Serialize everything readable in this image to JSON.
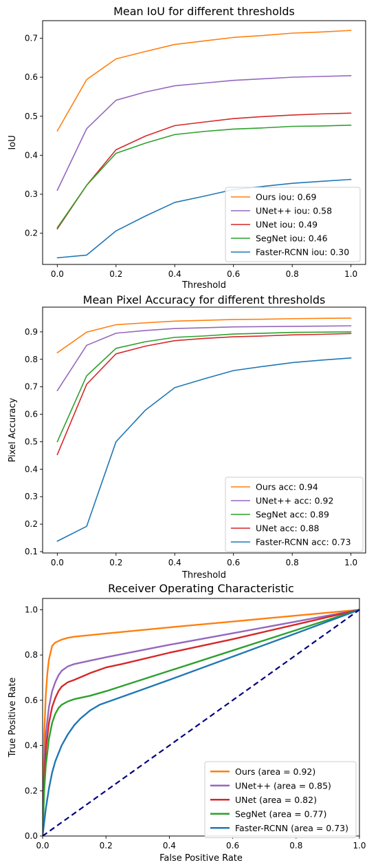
{
  "colors": {
    "ours": "#ff7f0e",
    "unetpp": "#9467bd",
    "unet": "#d62728",
    "segnet": "#2ca02c",
    "fastercnn": "#1f77b4",
    "diagonal": "#000080"
  },
  "chart_data": [
    {
      "type": "line",
      "title": "Mean IoU for different thresholds",
      "xlabel": "Threshold",
      "ylabel": "IoU",
      "xlim": [
        -0.05,
        1.05
      ],
      "ylim": [
        0.12,
        0.745
      ],
      "xticks": [
        0.0,
        0.2,
        0.4,
        0.6,
        0.8,
        1.0
      ],
      "yticks": [
        0.2,
        0.3,
        0.4,
        0.5,
        0.6,
        0.7
      ],
      "grid": false,
      "legend_position": "lower-right",
      "x": [
        0.0,
        0.1,
        0.2,
        0.3,
        0.4,
        0.5,
        0.6,
        0.7,
        0.8,
        0.9,
        1.0
      ],
      "series": [
        {
          "name": "Ours iou: 0.69",
          "color_key": "ours",
          "values": [
            0.462,
            0.594,
            0.647,
            0.666,
            0.684,
            0.693,
            0.702,
            0.707,
            0.713,
            0.716,
            0.72
          ]
        },
        {
          "name": "UNet++ iou: 0.58",
          "color_key": "unetpp",
          "values": [
            0.31,
            0.468,
            0.541,
            0.562,
            0.578,
            0.585,
            0.592,
            0.596,
            0.6,
            0.602,
            0.604
          ]
        },
        {
          "name": "UNet iou: 0.49",
          "color_key": "unet",
          "values": [
            0.211,
            0.323,
            0.414,
            0.449,
            0.476,
            0.485,
            0.494,
            0.499,
            0.503,
            0.506,
            0.508
          ]
        },
        {
          "name": "SegNet iou: 0.46",
          "color_key": "segnet",
          "values": [
            0.214,
            0.323,
            0.405,
            0.431,
            0.453,
            0.461,
            0.467,
            0.47,
            0.474,
            0.475,
            0.477
          ]
        },
        {
          "name": "Faster-RCNN iou: 0.30",
          "color_key": "fastercnn",
          "values": [
            0.137,
            0.144,
            0.206,
            0.244,
            0.279,
            0.295,
            0.312,
            0.32,
            0.328,
            0.333,
            0.338
          ]
        }
      ]
    },
    {
      "type": "line",
      "title": "Mean Pixel Accuracy for different thresholds",
      "xlabel": "Threshold",
      "ylabel": "Pixel Accuracy",
      "xlim": [
        -0.05,
        1.05
      ],
      "ylim": [
        0.095,
        0.99
      ],
      "xticks": [
        0.0,
        0.2,
        0.4,
        0.6,
        0.8,
        1.0
      ],
      "yticks": [
        0.1,
        0.2,
        0.3,
        0.4,
        0.5,
        0.6,
        0.7,
        0.8,
        0.9
      ],
      "grid": false,
      "legend_position": "lower-right",
      "x": [
        0.0,
        0.1,
        0.2,
        0.3,
        0.4,
        0.5,
        0.6,
        0.7,
        0.8,
        0.9,
        1.0
      ],
      "series": [
        {
          "name": "Ours acc: 0.94",
          "color_key": "ours",
          "values": [
            0.824,
            0.899,
            0.926,
            0.933,
            0.939,
            0.942,
            0.945,
            0.946,
            0.948,
            0.949,
            0.95
          ]
        },
        {
          "name": "UNet++ acc: 0.92",
          "color_key": "unetpp",
          "values": [
            0.686,
            0.851,
            0.895,
            0.905,
            0.912,
            0.915,
            0.918,
            0.919,
            0.92,
            0.921,
            0.922
          ]
        },
        {
          "name": "SegNet acc: 0.89",
          "color_key": "segnet",
          "values": [
            0.5,
            0.74,
            0.84,
            0.864,
            0.88,
            0.885,
            0.892,
            0.895,
            0.898,
            0.899,
            0.9
          ]
        },
        {
          "name": "UNet acc: 0.88",
          "color_key": "unet",
          "values": [
            0.453,
            0.709,
            0.82,
            0.848,
            0.868,
            0.876,
            0.882,
            0.885,
            0.889,
            0.891,
            0.894
          ]
        },
        {
          "name": "Faster-RCNN acc: 0.73",
          "color_key": "fastercnn",
          "values": [
            0.138,
            0.192,
            0.5,
            0.615,
            0.697,
            0.729,
            0.759,
            0.774,
            0.788,
            0.797,
            0.805
          ]
        }
      ]
    },
    {
      "type": "line",
      "title": "Receiver Operating Characteristic",
      "xlabel": "False Positive Rate",
      "ylabel": "True Positive Rate",
      "xlim": [
        0.0,
        1.0
      ],
      "ylim": [
        0.0,
        1.05
      ],
      "xticks": [
        0.0,
        0.2,
        0.4,
        0.6,
        0.8,
        1.0
      ],
      "yticks": [
        0.0,
        0.2,
        0.4,
        0.6,
        0.8,
        1.0
      ],
      "grid": false,
      "legend_position": "lower-right",
      "series": [
        {
          "name": "Ours (area = 0.92)",
          "color_key": "ours",
          "x": [
            0,
            0.005,
            0.01,
            0.015,
            0.02,
            0.03,
            0.04,
            0.06,
            0.08,
            0.1,
            0.2,
            0.4,
            0.6,
            0.8,
            1.0
          ],
          "values": [
            0,
            0.45,
            0.62,
            0.72,
            0.78,
            0.84,
            0.855,
            0.868,
            0.876,
            0.881,
            0.895,
            0.922,
            0.948,
            0.974,
            1.0
          ]
        },
        {
          "name": "UNet++ (area = 0.85)",
          "color_key": "unetpp",
          "x": [
            0,
            0.005,
            0.01,
            0.02,
            0.03,
            0.04,
            0.05,
            0.06,
            0.08,
            0.1,
            0.15,
            0.2,
            0.4,
            0.6,
            0.8,
            1.0
          ],
          "values": [
            0,
            0.3,
            0.45,
            0.57,
            0.64,
            0.68,
            0.71,
            0.73,
            0.75,
            0.76,
            0.775,
            0.79,
            0.845,
            0.896,
            0.948,
            1.0
          ]
        },
        {
          "name": "UNet (area = 0.82)",
          "color_key": "unet",
          "x": [
            0,
            0.005,
            0.01,
            0.02,
            0.03,
            0.04,
            0.05,
            0.06,
            0.08,
            0.1,
            0.15,
            0.2,
            0.25,
            0.4,
            0.6,
            0.8,
            1.0
          ],
          "values": [
            0,
            0.25,
            0.38,
            0.5,
            0.57,
            0.61,
            0.64,
            0.66,
            0.68,
            0.69,
            0.72,
            0.745,
            0.76,
            0.81,
            0.87,
            0.935,
            1.0
          ]
        },
        {
          "name": "SegNet (area = 0.77)",
          "color_key": "segnet",
          "x": [
            0,
            0.005,
            0.01,
            0.02,
            0.03,
            0.04,
            0.05,
            0.06,
            0.08,
            0.1,
            0.15,
            0.2,
            0.4,
            0.6,
            0.8,
            1.0
          ],
          "values": [
            0,
            0.2,
            0.31,
            0.43,
            0.5,
            0.54,
            0.565,
            0.58,
            0.595,
            0.605,
            0.62,
            0.64,
            0.73,
            0.82,
            0.91,
            1.0
          ]
        },
        {
          "name": "Faster-RCNN (area = 0.73)",
          "color_key": "fastercnn",
          "x": [
            0,
            0.01,
            0.02,
            0.03,
            0.04,
            0.06,
            0.08,
            0.1,
            0.12,
            0.15,
            0.18,
            0.2,
            0.3,
            0.4,
            0.6,
            0.8,
            1.0
          ],
          "values": [
            0,
            0.12,
            0.21,
            0.28,
            0.33,
            0.4,
            0.45,
            0.49,
            0.52,
            0.555,
            0.58,
            0.59,
            0.64,
            0.69,
            0.793,
            0.896,
            1.0
          ]
        }
      ],
      "reference_line": {
        "x": [
          0.0,
          1.0
        ],
        "values": [
          0.0,
          1.0
        ],
        "color_key": "diagonal",
        "style": "dashed"
      }
    }
  ]
}
